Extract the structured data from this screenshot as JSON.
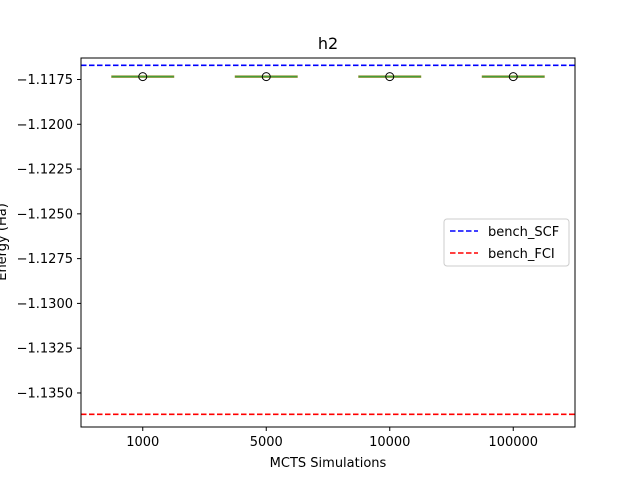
{
  "chart_data": {
    "type": "box",
    "title": "h2",
    "xlabel": "MCTS Simulations",
    "ylabel": "Energy (Ha)",
    "categories": [
      "1000",
      "5000",
      "10000",
      "100000"
    ],
    "ylim": [
      -1.1369,
      -1.1163
    ],
    "yticks": [
      -1.1175,
      -1.12,
      -1.1225,
      -1.125,
      -1.1275,
      -1.13,
      -1.1325,
      -1.135
    ],
    "ytick_labels": [
      "−1.1175",
      "−1.1200",
      "−1.1225",
      "−1.1250",
      "−1.1275",
      "−1.1300",
      "−1.1325",
      "−1.1350"
    ],
    "boxes": [
      {
        "category": "1000",
        "q1": -1.11734,
        "median": -1.11734,
        "q3": -1.11734,
        "whisker_low": -1.11734,
        "whisker_high": -1.11734,
        "mean": -1.11734
      },
      {
        "category": "5000",
        "q1": -1.11734,
        "median": -1.11734,
        "q3": -1.11734,
        "whisker_low": -1.11734,
        "whisker_high": -1.11734,
        "mean": -1.11734
      },
      {
        "category": "10000",
        "q1": -1.11734,
        "median": -1.11734,
        "q3": -1.11734,
        "whisker_low": -1.11734,
        "whisker_high": -1.11734,
        "mean": -1.11734
      },
      {
        "category": "100000",
        "q1": -1.11734,
        "median": -1.11734,
        "q3": -1.11734,
        "whisker_low": -1.11734,
        "whisker_high": -1.11734,
        "mean": -1.11734
      }
    ],
    "reference_lines": [
      {
        "name": "bench_SCF",
        "value": -1.11671,
        "color": "#0000ff",
        "style": "dashed"
      },
      {
        "name": "bench_FCI",
        "value": -1.13619,
        "color": "#ff0000",
        "style": "dashed"
      }
    ],
    "box_color": "#8a8a2a",
    "median_color": "#3aa03a",
    "legend_position": "center-right",
    "grid": false
  }
}
